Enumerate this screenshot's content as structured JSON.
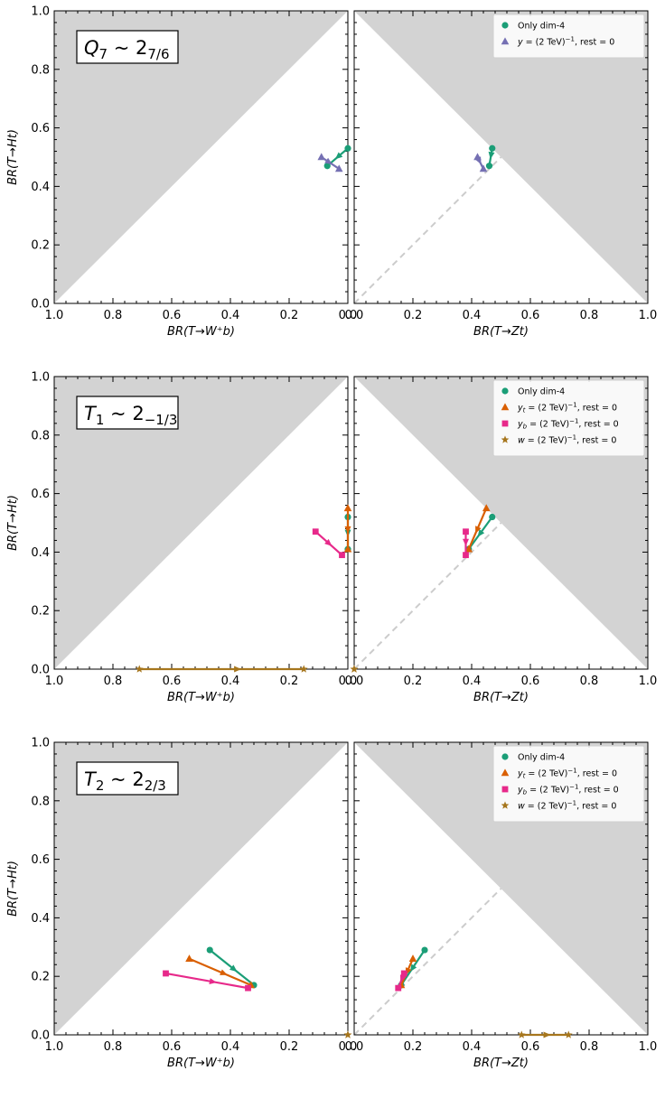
{
  "chart_data": [
    {
      "type": "line",
      "row_label": {
        "symbol": "Q",
        "symbol_sub": "7",
        "rel": "~ 2",
        "rep_sub": "7/6"
      },
      "left_xlabel": "BR(T→W⁺b)",
      "right_xlabel": "BR(T→Zt)",
      "ylabel": "BR(T→Ht)",
      "left_xlim": [
        1.0,
        0.0
      ],
      "right_xlim": [
        0.0,
        1.0
      ],
      "ylim": [
        0.0,
        1.0
      ],
      "xticks_left": [
        "1.0",
        "0.8",
        "0.6",
        "0.4",
        "0.2",
        "0.0"
      ],
      "xticks_right": [
        "0.0",
        "0.2",
        "0.4",
        "0.6",
        "0.8",
        "1.0"
      ],
      "yticks": [
        "0.0",
        "0.2",
        "0.4",
        "0.6",
        "0.8",
        "1.0"
      ],
      "legend": {
        "placement": "top-right",
        "entries": [
          {
            "series": "dim4",
            "pre": "Only dim-4",
            "mid": "",
            "post": ""
          },
          {
            "series": "y",
            "pre": "y",
            "mid": " = (2 TeV)",
            "post": ", rest = 0"
          }
        ]
      },
      "series": [
        {
          "key": "dim4",
          "points": [
            {
              "wb": 0.0,
              "zt": 0.47,
              "ht": 0.53
            },
            {
              "wb": 0.07,
              "zt": 0.46,
              "ht": 0.47
            }
          ]
        },
        {
          "key": "y",
          "points": [
            {
              "wb": 0.09,
              "zt": 0.42,
              "ht": 0.5
            },
            {
              "wb": 0.03,
              "zt": 0.44,
              "ht": 0.46
            }
          ]
        }
      ]
    },
    {
      "type": "line",
      "row_label": {
        "symbol": "T",
        "symbol_sub": "1",
        "rel": "~ 2",
        "rep_sub": "−1/3"
      },
      "left_xlabel": "BR(T→W⁺b)",
      "right_xlabel": "BR(T→Zt)",
      "ylabel": "BR(T→Ht)",
      "left_xlim": [
        1.0,
        0.0
      ],
      "right_xlim": [
        0.0,
        1.0
      ],
      "ylim": [
        0.0,
        1.0
      ],
      "xticks_left": [
        "1.0",
        "0.8",
        "0.6",
        "0.4",
        "0.2",
        "0.0"
      ],
      "xticks_right": [
        "0.0",
        "0.2",
        "0.4",
        "0.6",
        "0.8",
        "1.0"
      ],
      "yticks": [
        "0.0",
        "0.2",
        "0.4",
        "0.6",
        "0.8",
        "1.0"
      ],
      "legend": {
        "placement": "top-right",
        "entries": [
          {
            "series": "dim4",
            "pre": "Only dim-4",
            "mid": "",
            "post": ""
          },
          {
            "series": "yt",
            "pre": "yₜ",
            "mid": " = (2 TeV)",
            "post": ", rest = 0"
          },
          {
            "series": "yb",
            "pre": "y_b",
            "mid": " = (2 TeV)",
            "post": ", rest = 0"
          },
          {
            "series": "w",
            "pre": "w",
            "mid": " = (2 TeV)",
            "post": ", rest = 0"
          }
        ]
      },
      "series": [
        {
          "key": "dim4",
          "points": [
            {
              "wb": 0.0,
              "zt": 0.47,
              "ht": 0.52
            },
            {
              "wb": 0.0,
              "zt": 0.39,
              "ht": 0.41
            }
          ]
        },
        {
          "key": "yt",
          "points": [
            {
              "wb": 0.0,
              "zt": 0.45,
              "ht": 0.55
            },
            {
              "wb": 0.0,
              "zt": 0.39,
              "ht": 0.41
            }
          ]
        },
        {
          "key": "yb",
          "points": [
            {
              "wb": 0.11,
              "zt": 0.38,
              "ht": 0.47
            },
            {
              "wb": 0.02,
              "zt": 0.38,
              "ht": 0.39
            }
          ]
        },
        {
          "key": "w",
          "points": [
            {
              "wb": 0.71,
              "zt": 0.0,
              "ht": 0.0
            },
            {
              "wb": 0.15,
              "zt": 0.0,
              "ht": 0.0
            }
          ]
        }
      ]
    },
    {
      "type": "line",
      "row_label": {
        "symbol": "T",
        "symbol_sub": "2",
        "rel": "~ 2",
        "rep_sub": "2/3"
      },
      "left_xlabel": "BR(T→W⁺b)",
      "right_xlabel": "BR(T→Zt)",
      "ylabel": "BR(T→Ht)",
      "left_xlim": [
        1.0,
        0.0
      ],
      "right_xlim": [
        0.0,
        1.0
      ],
      "ylim": [
        0.0,
        1.0
      ],
      "xticks_left": [
        "1.0",
        "0.8",
        "0.6",
        "0.4",
        "0.2",
        "0.0"
      ],
      "xticks_right": [
        "0.0",
        "0.2",
        "0.4",
        "0.6",
        "0.8",
        "1.0"
      ],
      "yticks": [
        "0.0",
        "0.2",
        "0.4",
        "0.6",
        "0.8",
        "1.0"
      ],
      "legend": {
        "placement": "top-right",
        "entries": [
          {
            "series": "dim4",
            "pre": "Only dim-4",
            "mid": "",
            "post": ""
          },
          {
            "series": "yt",
            "pre": "yₜ",
            "mid": " = (2 TeV)",
            "post": ", rest = 0"
          },
          {
            "series": "yb",
            "pre": "y_b",
            "mid": " = (2 TeV)",
            "post": ", rest = 0"
          },
          {
            "series": "w",
            "pre": "w",
            "mid": " = (2 TeV)",
            "post": ", rest = 0"
          }
        ]
      },
      "series": [
        {
          "key": "dim4",
          "points": [
            {
              "wb": 0.47,
              "zt": 0.24,
              "ht": 0.29
            },
            {
              "wb": 0.32,
              "zt": 0.16,
              "ht": 0.17
            }
          ]
        },
        {
          "key": "yt",
          "points": [
            {
              "wb": 0.54,
              "zt": 0.2,
              "ht": 0.26
            },
            {
              "wb": 0.33,
              "zt": 0.16,
              "ht": 0.17
            }
          ]
        },
        {
          "key": "yb",
          "points": [
            {
              "wb": 0.62,
              "zt": 0.17,
              "ht": 0.21
            },
            {
              "wb": 0.34,
              "zt": 0.15,
              "ht": 0.16
            }
          ]
        },
        {
          "key": "w",
          "points": [
            {
              "wb": 0.0,
              "zt": 0.57,
              "ht": 0.0
            },
            {
              "wb": 0.0,
              "zt": 0.73,
              "ht": 0.0
            }
          ]
        }
      ]
    }
  ],
  "legend_superscript": "−1",
  "styles": {
    "dim4": {
      "color": "#1b9e77",
      "marker": "circle"
    },
    "y": {
      "color": "#7570b3",
      "marker": "triangle"
    },
    "yt": {
      "color": "#d95f02",
      "marker": "triangle"
    },
    "yb": {
      "color": "#e7298a",
      "marker": "square"
    },
    "w": {
      "color": "#a6761d",
      "marker": "star"
    },
    "shade": "#d3d3d3",
    "diagonal": "#cccccc"
  }
}
